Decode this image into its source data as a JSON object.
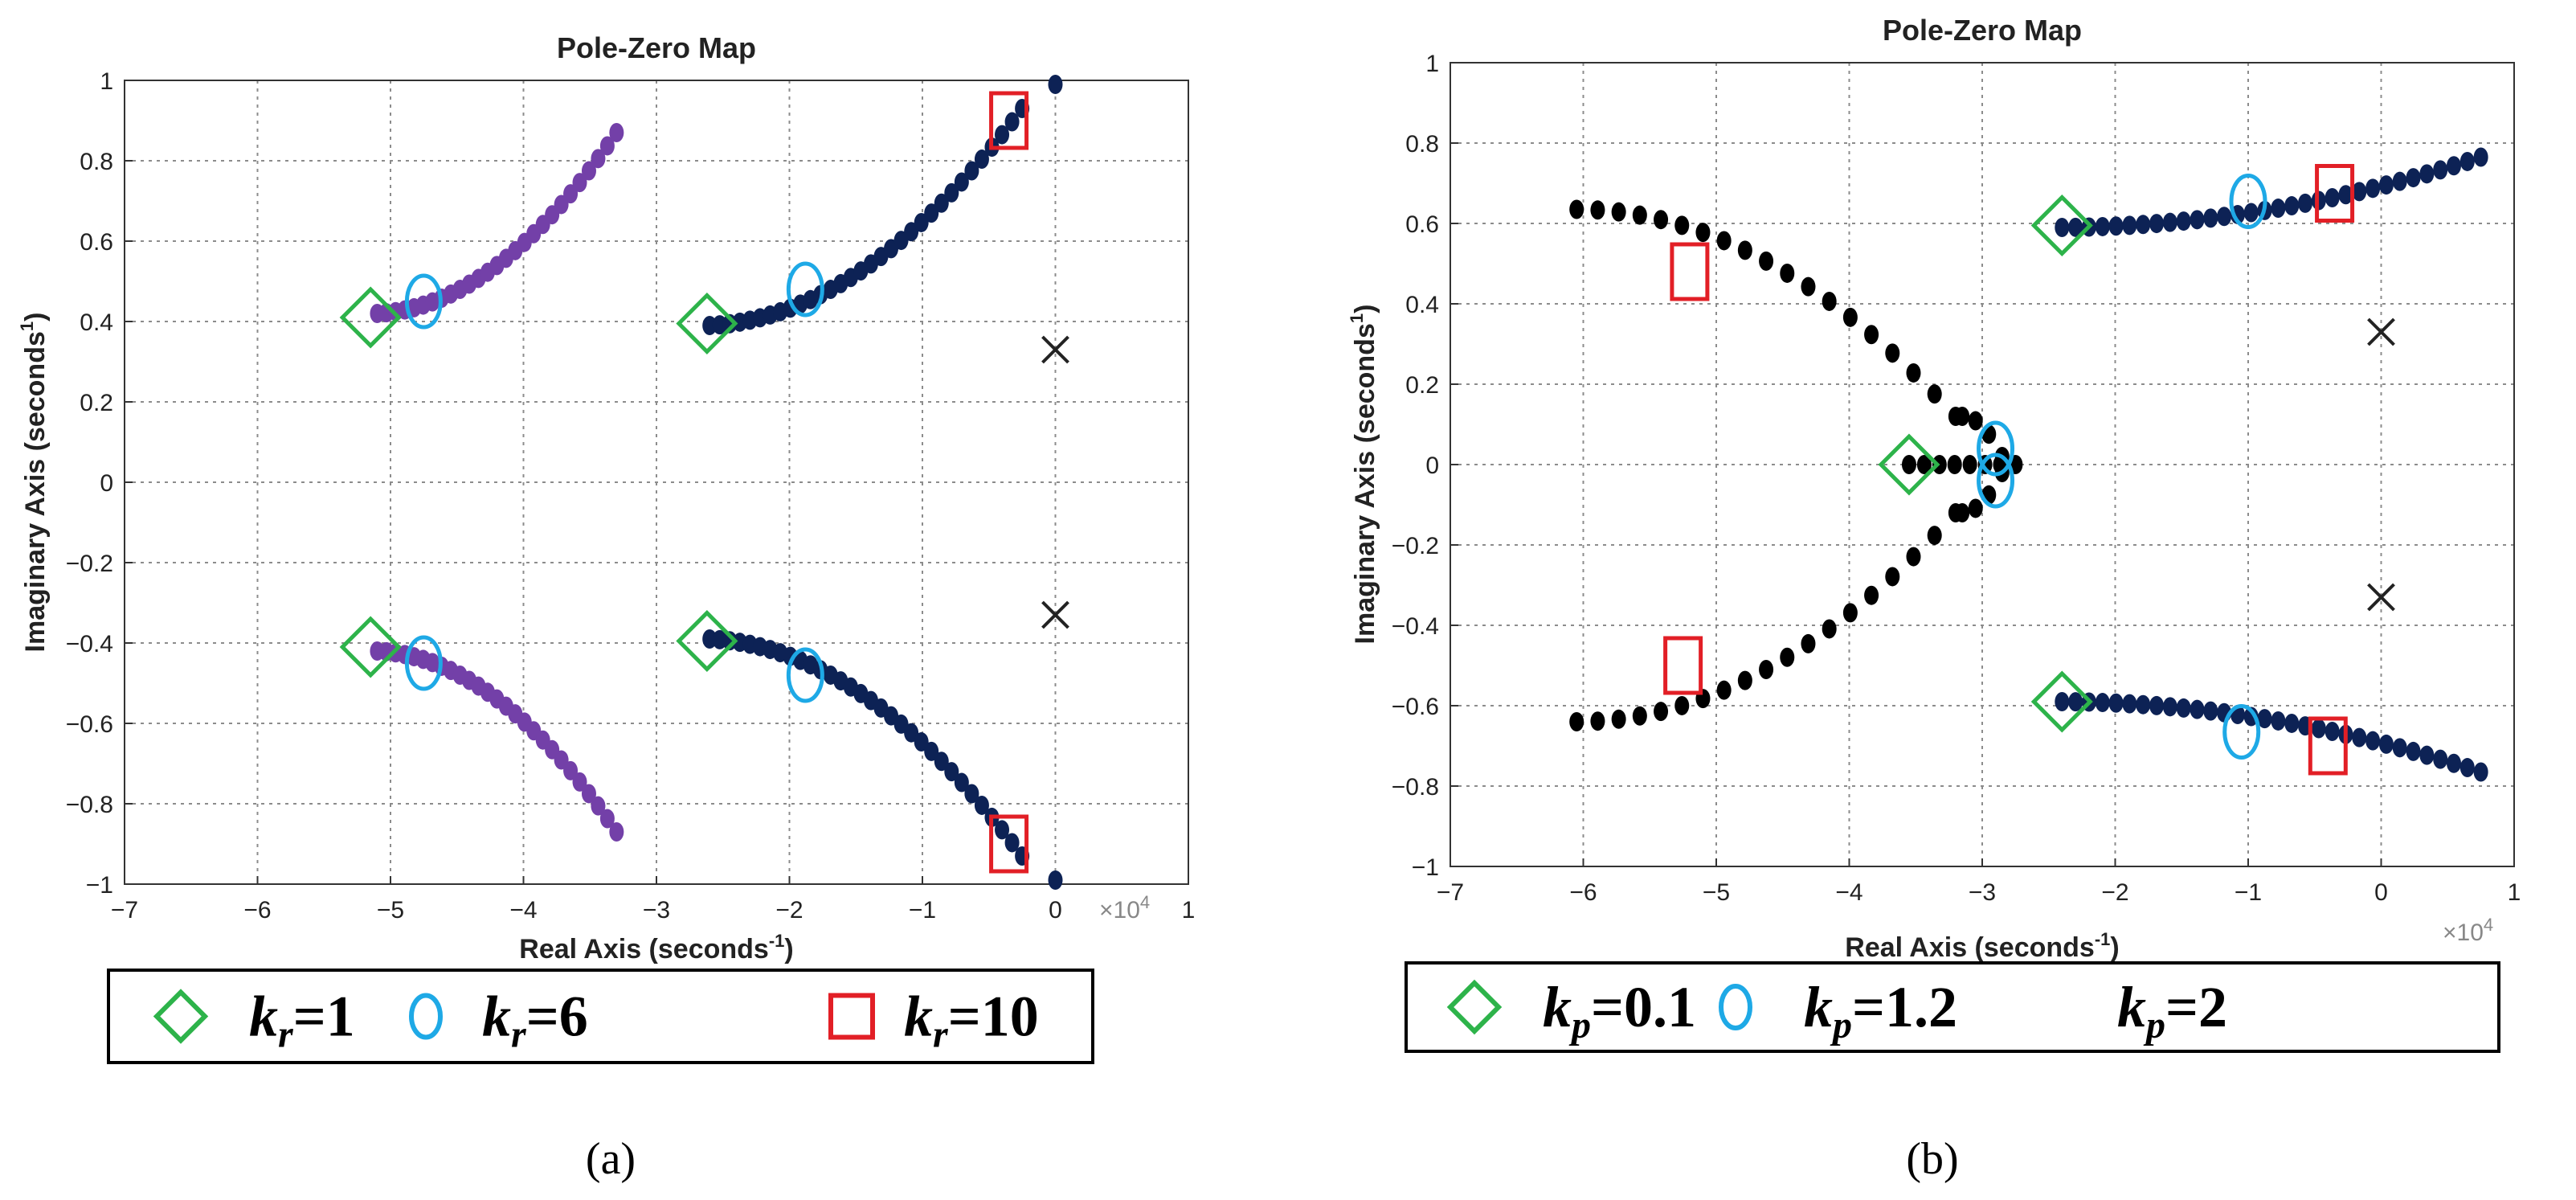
{
  "chart_data": [
    {
      "id": "a",
      "type": "scatter",
      "title": "Pole-Zero Map",
      "xlabel": "Real Axis (seconds",
      "xlabel_sup": "-1",
      "xlabel_end": ")",
      "ylabel": "Imaginary Axis (seconds",
      "ylabel_sup": "1",
      "ylabel_end": ")",
      "xlim": [
        -7,
        1
      ],
      "ylim": [
        -1,
        1
      ],
      "xticks": [
        -7,
        -6,
        -5,
        -4,
        -3,
        -2,
        -1,
        0,
        1
      ],
      "xtick_labels": [
        "−7",
        "−6",
        "−5",
        "−4",
        "−3",
        "−2",
        "−1",
        "0",
        "1"
      ],
      "yticks": [
        -1,
        -0.8,
        -0.6,
        -0.4,
        -0.2,
        0,
        0.2,
        0.4,
        0.6,
        0.8,
        1
      ],
      "ytick_labels": [
        "−1",
        "−0.8",
        "−0.6",
        "−0.4",
        "−0.2",
        "0",
        "0.2",
        "0.4",
        "0.6",
        "0.8",
        "1"
      ],
      "x_exponent": "×10",
      "x_exponent_power": "4",
      "grid": true,
      "panel_label": "(a)",
      "series": [
        {
          "name": "root locus 1",
          "color": "#7340a8",
          "from": [
            -5.1,
            0.42
          ],
          "to": [
            -3.3,
            0.87
          ],
          "n": 27,
          "sym": true,
          "curve": 0.06
        },
        {
          "name": "root locus 2",
          "color": "#0d2255",
          "from": [
            -2.6,
            0.39
          ],
          "to": [
            -0.25,
            0.93
          ],
          "n": 32,
          "sym": true,
          "curve": 0.07
        },
        {
          "name": "zero pair",
          "color": "#0d2255",
          "points": [
            [
              0,
              0.99
            ],
            [
              0,
              -0.99
            ]
          ]
        }
      ],
      "crosses": [
        [
          0,
          0.33
        ],
        [
          0,
          -0.33
        ]
      ],
      "markers": [
        {
          "kind": "diamond",
          "color": "#2db34a",
          "points": [
            [
              -5.15,
              0.41
            ],
            [
              -5.15,
              -0.41
            ],
            [
              -2.62,
              0.395
            ],
            [
              -2.62,
              -0.395
            ]
          ]
        },
        {
          "kind": "ellipse",
          "color": "#1ea9e6",
          "points": [
            [
              -4.75,
              0.45
            ],
            [
              -4.75,
              -0.45
            ],
            [
              -1.88,
              0.48
            ],
            [
              -1.88,
              -0.48
            ]
          ]
        },
        {
          "kind": "square",
          "color": "#e21f26",
          "points": [
            [
              -0.35,
              0.9
            ],
            [
              -0.35,
              -0.9
            ]
          ]
        }
      ],
      "legend": [
        {
          "symbol": "diamond",
          "color": "#2db34a",
          "var": "k",
          "sub": "r",
          "value": "=1"
        },
        {
          "symbol": "ellipse",
          "color": "#1ea9e6",
          "var": "k",
          "sub": "r",
          "value": "=6"
        },
        {
          "symbol": "square",
          "color": "#e21f26",
          "var": "k",
          "sub": "r",
          "value": "=10"
        }
      ]
    },
    {
      "id": "b",
      "type": "scatter",
      "title": "Pole-Zero Map",
      "xlabel": "Real Axis (seconds",
      "xlabel_sup": "-1",
      "xlabel_end": ")",
      "ylabel": "Imaginary Axis (seconds",
      "ylabel_sup": "1",
      "ylabel_end": ")",
      "xlim": [
        -7,
        1
      ],
      "ylim": [
        -1,
        1
      ],
      "xticks": [
        -7,
        -6,
        -5,
        -4,
        -3,
        -2,
        -1,
        0,
        1
      ],
      "xtick_labels": [
        "−7",
        "−6",
        "−5",
        "−4",
        "−3",
        "−2",
        "−1",
        "0",
        "1"
      ],
      "yticks": [
        -1,
        -0.8,
        -0.6,
        -0.4,
        -0.2,
        0,
        0.2,
        0.4,
        0.6,
        0.8,
        1
      ],
      "ytick_labels": [
        "−1",
        "−0.8",
        "−0.6",
        "−0.4",
        "−0.2",
        "0",
        "0.2",
        "0.4",
        "0.6",
        "0.8",
        "1"
      ],
      "x_exponent": "×10",
      "x_exponent_power": "4",
      "grid": true,
      "panel_label": "(b)",
      "series": [
        {
          "name": "branch upper",
          "color": "#000000",
          "from": [
            -6.05,
            0.635
          ],
          "to": [
            -3.2,
            0.12
          ],
          "n": 19,
          "sym": false,
          "curve": 0.0
        },
        {
          "name": "branch lower",
          "color": "#000000",
          "from": [
            -6.05,
            -0.64
          ],
          "to": [
            -3.2,
            -0.12
          ],
          "n": 19,
          "sym": false,
          "curve": 0.0
        },
        {
          "name": "branch upper tip",
          "color": "#000000",
          "from": [
            -3.15,
            0.12
          ],
          "to": [
            -2.85,
            0.02
          ],
          "n": 4,
          "sym": true,
          "curve": 0.0
        },
        {
          "name": "real axis poles",
          "color": "#000000",
          "from": [
            -3.55,
            0.0
          ],
          "to": [
            -2.75,
            0.0
          ],
          "n": 8,
          "sym": false,
          "curve": 0.0
        },
        {
          "name": "upper navy",
          "color": "#0d2255",
          "from": [
            -2.4,
            0.59
          ],
          "to": [
            0.75,
            0.765
          ],
          "n": 32,
          "sym": false,
          "curve": 0.03
        },
        {
          "name": "lower navy",
          "color": "#0d2255",
          "from": [
            -2.4,
            -0.59
          ],
          "to": [
            0.75,
            -0.765
          ],
          "n": 32,
          "sym": false,
          "curve": 0.03
        }
      ],
      "crosses": [
        [
          0,
          0.33
        ],
        [
          0,
          -0.33
        ]
      ],
      "markers": [
        {
          "kind": "diamond",
          "color": "#2db34a",
          "points": [
            [
              -3.55,
              0.0
            ],
            [
              -2.4,
              0.595
            ],
            [
              -2.4,
              -0.59
            ]
          ]
        },
        {
          "kind": "ellipse",
          "color": "#1ea9e6",
          "points": [
            [
              -2.9,
              0.04
            ],
            [
              -2.9,
              -0.04
            ],
            [
              -1.0,
              0.655
            ],
            [
              -1.05,
              -0.665
            ]
          ]
        },
        {
          "kind": "square",
          "color": "#e21f26",
          "points": [
            [
              -5.2,
              0.48
            ],
            [
              -5.25,
              -0.5
            ],
            [
              -0.35,
              0.675
            ],
            [
              -0.4,
              -0.7
            ]
          ]
        }
      ],
      "legend": [
        {
          "symbol": "diamond",
          "color": "#2db34a",
          "var": "k",
          "sub": "p",
          "value": "=0.1"
        },
        {
          "symbol": "ellipse",
          "color": "#1ea9e6",
          "var": "k",
          "sub": "p",
          "value": "=1.2"
        },
        {
          "symbol": "none",
          "color": "#000000",
          "var": "k",
          "sub": "p",
          "value": "=2"
        }
      ]
    }
  ]
}
